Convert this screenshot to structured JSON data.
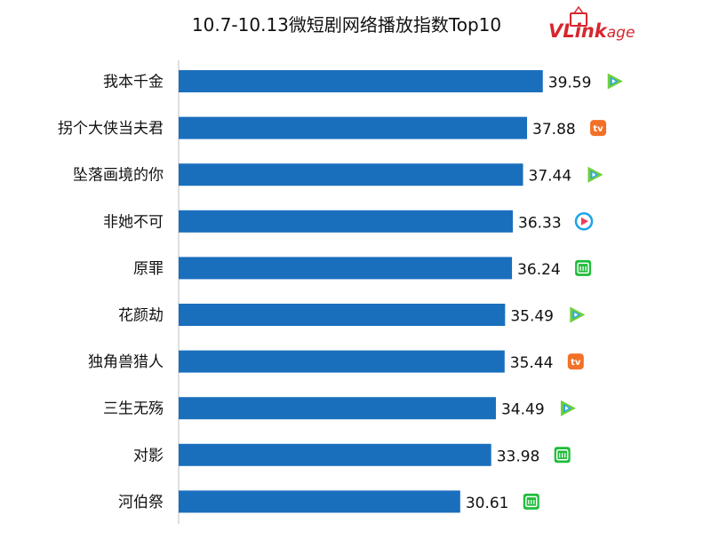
{
  "chart_data": {
    "type": "bar",
    "orientation": "horizontal",
    "title": "10.7-10.13微短剧网络播放指数Top10",
    "categories": [
      "我本千金",
      "拐个大侠当夫君",
      "坠落画境的你",
      "非她不可",
      "原罪",
      "花颜劫",
      "独角兽猎人",
      "三生无殇",
      "对影",
      "河伯祭"
    ],
    "values": [
      39.59,
      37.88,
      37.44,
      36.33,
      36.24,
      35.49,
      35.44,
      34.49,
      33.98,
      30.61
    ],
    "value_labels": [
      "39.59",
      "37.88",
      "37.44",
      "36.33",
      "36.24",
      "35.49",
      "35.44",
      "34.49",
      "33.98",
      "30.61"
    ],
    "platform_icons": [
      "tencent-video-icon",
      "mango-tv-icon",
      "tencent-video-icon",
      "youku-icon",
      "iqiyi-icon",
      "tencent-video-icon",
      "mango-tv-icon",
      "tencent-video-icon",
      "iqiyi-icon",
      "iqiyi-icon"
    ],
    "xlim": [
      0,
      40
    ],
    "grid": false,
    "legend": "none",
    "bar_color": "#1a6fbd"
  },
  "brand": {
    "logo_v": "V",
    "logo_link": "Link",
    "logo_age": "age"
  },
  "colors": {
    "brand_red": "#d7262e",
    "tencent_green": "#6fcf3a",
    "tencent_blue": "#2aa5e6",
    "mango_orange": "#f27127",
    "youku_blue": "#1ea3e6",
    "youku_red": "#f23b5d",
    "iqiyi_green": "#1fbd3a"
  }
}
